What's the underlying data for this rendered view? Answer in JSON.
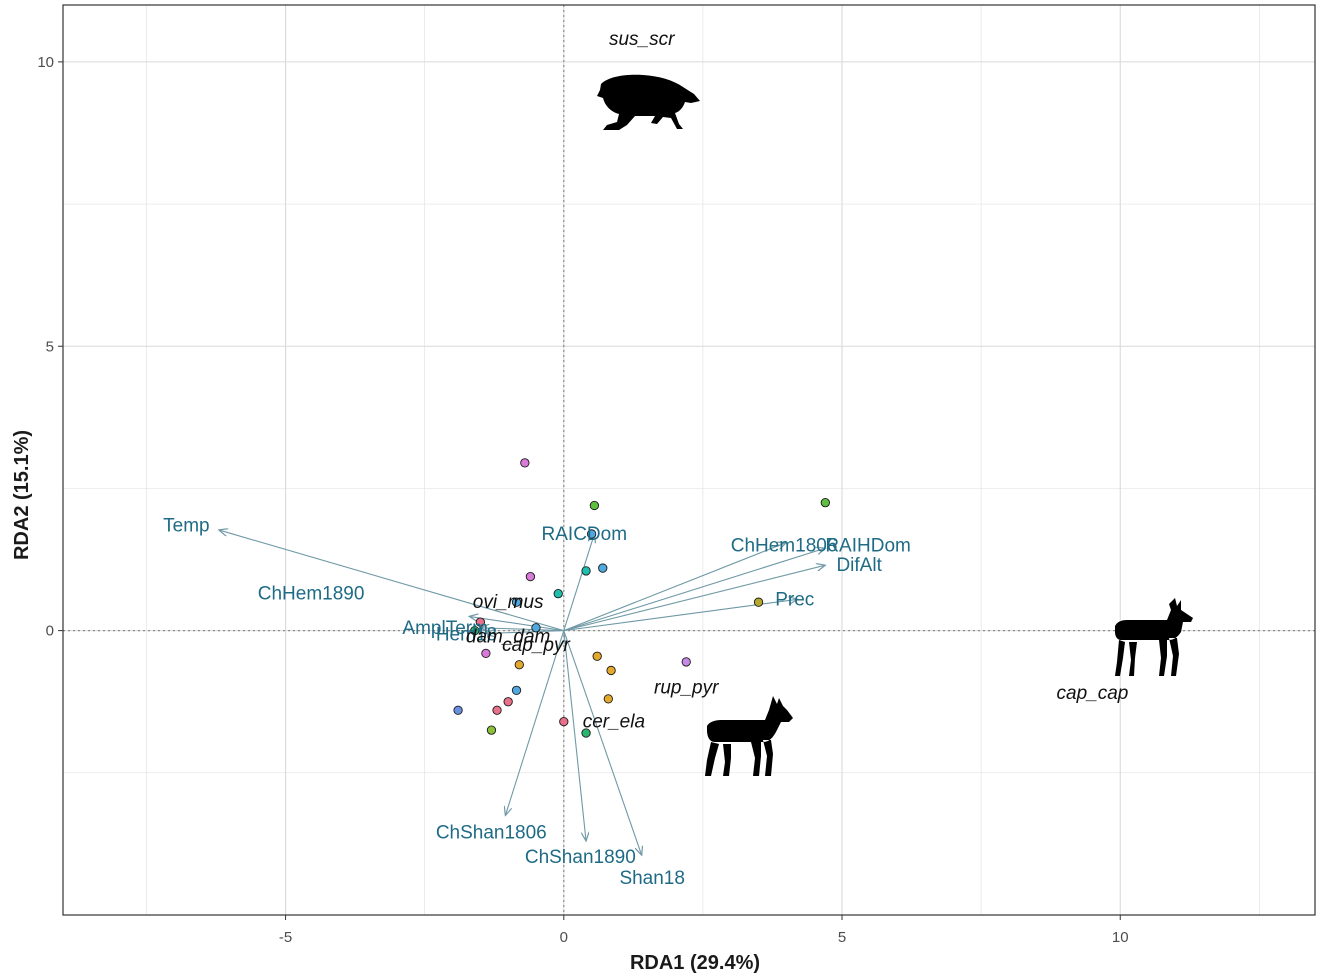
{
  "chart_data": {
    "type": "scatter",
    "title": "",
    "xlabel": "RDA1 (29.4%)",
    "ylabel": "RDA2 (15.1%)",
    "xlim": [
      -9.0,
      13.5
    ],
    "ylim": [
      -5.0,
      11.0
    ],
    "x_ticks": [
      -5,
      0,
      5,
      10
    ],
    "y_ticks": [
      0,
      5,
      10
    ],
    "x_tick_labels": [
      "-5",
      "0",
      "5",
      "10"
    ],
    "y_tick_labels": [
      "0",
      "5",
      "10"
    ],
    "grid": true,
    "zero_lines": true,
    "env_vectors": [
      {
        "name": "Temp",
        "x": -6.2,
        "y": 1.77,
        "label_x": -7.2,
        "label_y": 1.85
      },
      {
        "name": "ChHem1890",
        "x": -1.7,
        "y": 0.25,
        "label_x": -5.5,
        "label_y": 0.65
      },
      {
        "name": "AmplTerm",
        "x": -1.5,
        "y": 0.05,
        "label_x": -2.9,
        "label_y": 0.05
      },
      {
        "name": "Hem18",
        "x": -1.4,
        "y": -0.05,
        "label_x": -2.3,
        "label_y": -0.07
      },
      {
        "name": "RAICDom",
        "x": 0.55,
        "y": 1.7,
        "label_x": -0.4,
        "label_y": 1.7
      },
      {
        "name": "ChHem1806",
        "x": 4.0,
        "y": 1.55,
        "label_x": 3.0,
        "label_y": 1.5
      },
      {
        "name": "RAIHDom",
        "x": 4.7,
        "y": 1.45,
        "label_x": 4.7,
        "label_y": 1.5
      },
      {
        "name": "DifAlt",
        "x": 4.7,
        "y": 1.15,
        "label_x": 4.9,
        "label_y": 1.15
      },
      {
        "name": "Prec",
        "x": 4.2,
        "y": 0.55,
        "label_x": 3.8,
        "label_y": 0.55
      },
      {
        "name": "ChShan1806",
        "x": -1.05,
        "y": -3.25,
        "label_x": -2.3,
        "label_y": -3.55
      },
      {
        "name": "ChShan1890",
        "x": 0.4,
        "y": -3.7,
        "label_x": -0.7,
        "label_y": -3.98
      },
      {
        "name": "Shan18",
        "x": 1.4,
        "y": -3.95,
        "label_x": 1.0,
        "label_y": -4.35
      }
    ],
    "species": [
      {
        "name": "sus_scr",
        "x": 1.4,
        "y": 10.4
      },
      {
        "name": "ovi_mus",
        "x": -1.0,
        "y": 0.5
      },
      {
        "name": "dam_dam",
        "x": -1.0,
        "y": -0.1
      },
      {
        "name": "cap_pyr",
        "x": -0.5,
        "y": -0.25
      },
      {
        "name": "rup_pyr",
        "x": 2.2,
        "y": -1.0
      },
      {
        "name": "cer_ela",
        "x": 0.9,
        "y": -1.6
      },
      {
        "name": "cap_cap",
        "x": 9.5,
        "y": -1.1
      }
    ],
    "sites": [
      {
        "x": -0.7,
        "y": 2.95,
        "color": "#d97ad9"
      },
      {
        "x": 0.55,
        "y": 2.2,
        "color": "#5fbf3f"
      },
      {
        "x": 4.7,
        "y": 2.25,
        "color": "#5fbf3f"
      },
      {
        "x": 0.5,
        "y": 1.7,
        "color": "#4fa8e0"
      },
      {
        "x": 0.4,
        "y": 1.05,
        "color": "#1fbfb0"
      },
      {
        "x": 0.7,
        "y": 1.1,
        "color": "#4fa8e0"
      },
      {
        "x": -0.6,
        "y": 0.95,
        "color": "#d97ad9"
      },
      {
        "x": -0.1,
        "y": 0.65,
        "color": "#1fbfb0"
      },
      {
        "x": 3.5,
        "y": 0.5,
        "color": "#b5a82c"
      },
      {
        "x": -0.85,
        "y": 0.5,
        "color": "#4fa8e0"
      },
      {
        "x": -1.5,
        "y": 0.15,
        "color": "#e8708a"
      },
      {
        "x": -0.5,
        "y": 0.05,
        "color": "#4fa8e0"
      },
      {
        "x": -1.6,
        "y": 0.0,
        "color": "#2bb56e"
      },
      {
        "x": -1.4,
        "y": -0.4,
        "color": "#d97ad9"
      },
      {
        "x": -0.8,
        "y": -0.6,
        "color": "#e3a92c"
      },
      {
        "x": 0.6,
        "y": -0.45,
        "color": "#e3a92c"
      },
      {
        "x": 0.85,
        "y": -0.7,
        "color": "#e3a92c"
      },
      {
        "x": 2.2,
        "y": -0.55,
        "color": "#c58ae6"
      },
      {
        "x": -0.85,
        "y": -1.05,
        "color": "#4fa8e0"
      },
      {
        "x": 0.8,
        "y": -1.2,
        "color": "#e3a92c"
      },
      {
        "x": -1.0,
        "y": -1.25,
        "color": "#e8708a"
      },
      {
        "x": -1.2,
        "y": -1.4,
        "color": "#e8708a"
      },
      {
        "x": -1.9,
        "y": -1.4,
        "color": "#6b8fe0"
      },
      {
        "x": 0.0,
        "y": -1.6,
        "color": "#e8708a"
      },
      {
        "x": -1.3,
        "y": -1.75,
        "color": "#8ac03a"
      },
      {
        "x": 0.4,
        "y": -1.8,
        "color": "#2bb56e"
      }
    ],
    "silhouettes": [
      {
        "species": "sus_scr",
        "icon": "boar-icon"
      },
      {
        "species": "cap_cap",
        "icon": "roe-deer-icon"
      },
      {
        "species": "rup_pyr",
        "icon": "chamois-icon"
      }
    ],
    "colors": {
      "vector": "#6f99a6",
      "env_label": "#1f6b86",
      "grid": "#e3e3e3",
      "zero_line": "#8a8a8a",
      "border": "#333333",
      "silhouette": "#000000"
    }
  }
}
